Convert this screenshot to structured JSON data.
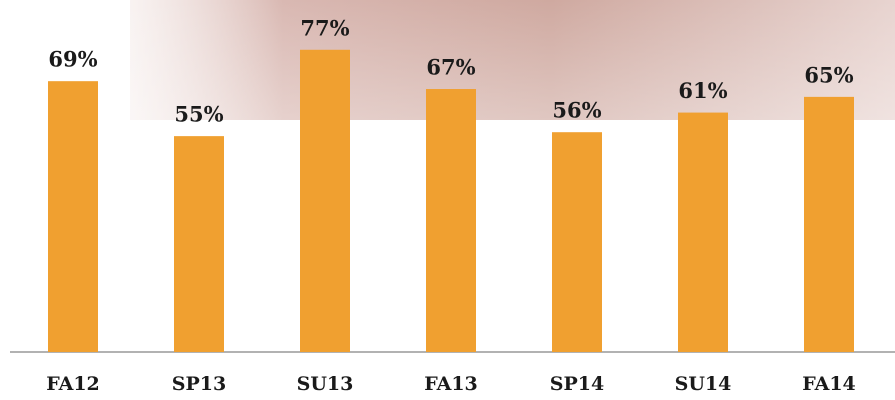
{
  "chart_data": {
    "type": "bar",
    "categories": [
      "FA12",
      "SP13",
      "SU13",
      "FA13",
      "SP14",
      "SU14",
      "FA14"
    ],
    "values": [
      69,
      55,
      77,
      67,
      56,
      61,
      65
    ],
    "value_labels": [
      "69%",
      "55%",
      "77%",
      "67%",
      "56%",
      "61%",
      "65%"
    ],
    "color": "#f0a030",
    "ylim": [
      0,
      80
    ]
  }
}
